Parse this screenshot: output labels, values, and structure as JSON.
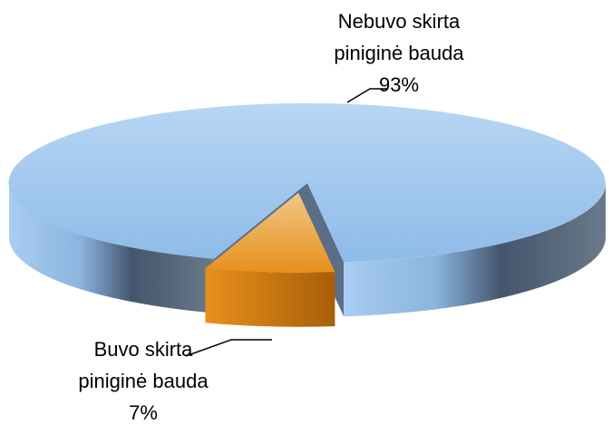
{
  "chart_data": {
    "type": "pie",
    "three_d": true,
    "categories": [
      "Nebuvo skirta piniginė bauda",
      "Buvo skirta piniginė bauda"
    ],
    "values": [
      93,
      7
    ],
    "value_labels": [
      "93%",
      "7%"
    ],
    "colors": [
      "#9cc3ec",
      "#e8901c"
    ]
  }
}
